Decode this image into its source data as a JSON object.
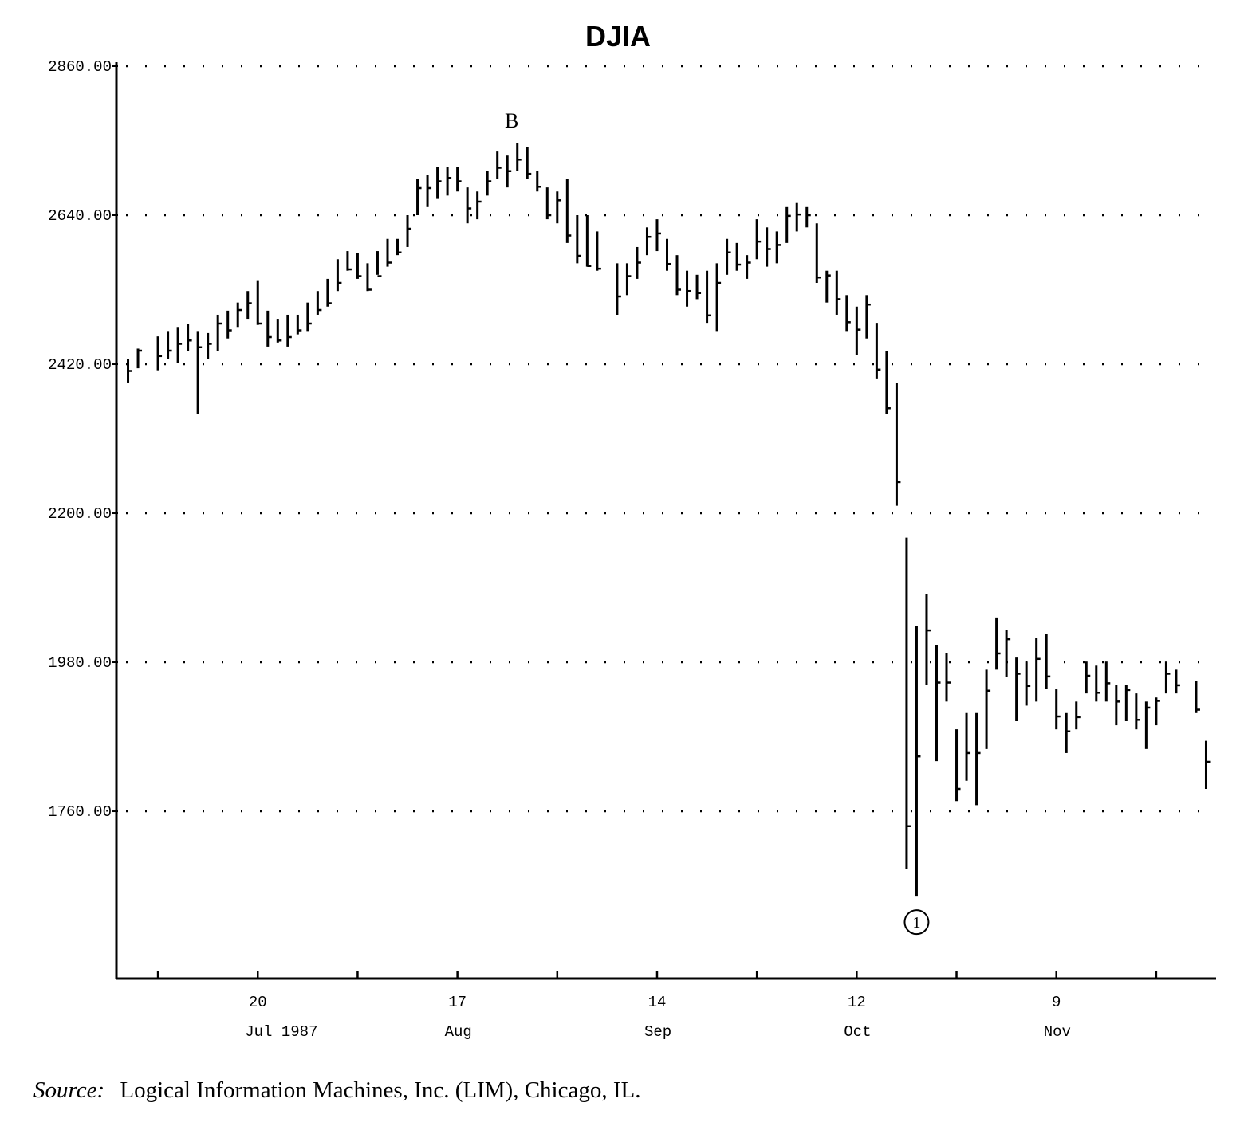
{
  "chart_data": {
    "type": "ohlc",
    "title": "DJIA",
    "source_label": "Source:",
    "source": "Logical Information Machines, Inc. (LIM), Chicago, IL.",
    "color": "#000000",
    "grid": true,
    "xlim": [
      "1987-06-30",
      "1987-12-01"
    ],
    "ylim": [
      1513,
      2860
    ],
    "yticks": [
      {
        "value": 2860,
        "label": "2860.00"
      },
      {
        "value": 2640,
        "label": "2640.00"
      },
      {
        "value": 2420,
        "label": "2420.00"
      },
      {
        "value": 2200,
        "label": "2200.00"
      },
      {
        "value": 1980,
        "label": "1980.00"
      },
      {
        "value": 1760,
        "label": "1760.00"
      }
    ],
    "xticks": [
      {
        "value": "1987-07-20",
        "label": "20",
        "sublabel": "Jul 1987"
      },
      {
        "value": "1987-08-17",
        "label": "17",
        "sublabel": "Aug"
      },
      {
        "value": "1987-09-14",
        "label": "14",
        "sublabel": "Sep"
      },
      {
        "value": "1987-10-12",
        "label": "12",
        "sublabel": "Oct"
      },
      {
        "value": "1987-11-09",
        "label": "9",
        "sublabel": "Nov"
      }
    ],
    "xminorticks": [
      "1987-07-06",
      "1987-08-03",
      "1987-08-31",
      "1987-09-28",
      "1987-10-26",
      "1987-11-23"
    ],
    "annotations": [
      {
        "label": "B",
        "x": "1987-08-25"
      },
      {
        "label": "1",
        "x": "1987-10-20"
      }
    ],
    "x": [
      "1987-07-01",
      "1987-07-02",
      "1987-07-06",
      "1987-07-07",
      "1987-07-08",
      "1987-07-09",
      "1987-07-10",
      "1987-07-13",
      "1987-07-14",
      "1987-07-15",
      "1987-07-16",
      "1987-07-17",
      "1987-07-20",
      "1987-07-21",
      "1987-07-22",
      "1987-07-23",
      "1987-07-24",
      "1987-07-27",
      "1987-07-28",
      "1987-07-29",
      "1987-07-30",
      "1987-07-31",
      "1987-08-03",
      "1987-08-04",
      "1987-08-05",
      "1987-08-06",
      "1987-08-07",
      "1987-08-10",
      "1987-08-11",
      "1987-08-12",
      "1987-08-13",
      "1987-08-14",
      "1987-08-17",
      "1987-08-18",
      "1987-08-19",
      "1987-08-20",
      "1987-08-21",
      "1987-08-24",
      "1987-08-25",
      "1987-08-26",
      "1987-08-27",
      "1987-08-28",
      "1987-08-31",
      "1987-09-01",
      "1987-09-02",
      "1987-09-03",
      "1987-09-04",
      "1987-09-08",
      "1987-09-09",
      "1987-09-10",
      "1987-09-11",
      "1987-09-14",
      "1987-09-15",
      "1987-09-16",
      "1987-09-17",
      "1987-09-18",
      "1987-09-21",
      "1987-09-22",
      "1987-09-23",
      "1987-09-24",
      "1987-09-25",
      "1987-09-28",
      "1987-09-29",
      "1987-09-30",
      "1987-10-01",
      "1987-10-02",
      "1987-10-05",
      "1987-10-06",
      "1987-10-07",
      "1987-10-08",
      "1987-10-09",
      "1987-10-12",
      "1987-10-13",
      "1987-10-14",
      "1987-10-15",
      "1987-10-16",
      "1987-10-19",
      "1987-10-20",
      "1987-10-21",
      "1987-10-22",
      "1987-10-23",
      "1987-10-26",
      "1987-10-27",
      "1987-10-28",
      "1987-10-29",
      "1987-10-30",
      "1987-11-02",
      "1987-11-03",
      "1987-11-04",
      "1987-11-05",
      "1987-11-06",
      "1987-11-09",
      "1987-11-10",
      "1987-11-11",
      "1987-11-12",
      "1987-11-13",
      "1987-11-16",
      "1987-11-17",
      "1987-11-18",
      "1987-11-19",
      "1987-11-20",
      "1987-11-23",
      "1987-11-24",
      "1987-11-25",
      "1987-11-27",
      "1987-11-30"
    ],
    "high": [
      2428,
      2443,
      2461,
      2469,
      2475,
      2479,
      2469,
      2466,
      2493,
      2499,
      2511,
      2528,
      2544,
      2499,
      2487,
      2493,
      2493,
      2511,
      2528,
      2546,
      2575,
      2587,
      2584,
      2569,
      2587,
      2605,
      2605,
      2640,
      2693,
      2699,
      2711,
      2711,
      2711,
      2681,
      2675,
      2705,
      2734,
      2728,
      2746,
      2740,
      2705,
      2681,
      2675,
      2693,
      2640,
      2640,
      2616,
      2569,
      2569,
      2593,
      2622,
      2634,
      2605,
      2581,
      2558,
      2552,
      2558,
      2569,
      2605,
      2599,
      2581,
      2634,
      2622,
      2616,
      2652,
      2658,
      2652,
      2628,
      2558,
      2558,
      2522,
      2505,
      2522,
      2481,
      2440,
      2393,
      2164,
      2034,
      2081,
      2005,
      1993,
      1881,
      1905,
      1905,
      1969,
      2046,
      2028,
      1987,
      1981,
      2016,
      2022,
      1940,
      1905,
      1922,
      1981,
      1975,
      1981,
      1946,
      1946,
      1934,
      1922,
      1928,
      1981,
      1969,
      1952,
      1864
    ],
    "low": [
      2393,
      2414,
      2411,
      2428,
      2422,
      2440,
      2346,
      2428,
      2440,
      2458,
      2475,
      2487,
      2478,
      2446,
      2452,
      2446,
      2464,
      2469,
      2493,
      2505,
      2528,
      2558,
      2546,
      2528,
      2552,
      2564,
      2581,
      2593,
      2640,
      2652,
      2664,
      2669,
      2675,
      2628,
      2634,
      2669,
      2693,
      2681,
      2705,
      2693,
      2675,
      2634,
      2628,
      2599,
      2569,
      2564,
      2558,
      2493,
      2522,
      2546,
      2581,
      2587,
      2558,
      2522,
      2505,
      2516,
      2481,
      2469,
      2552,
      2558,
      2546,
      2575,
      2564,
      2569,
      2599,
      2616,
      2622,
      2540,
      2511,
      2493,
      2469,
      2434,
      2458,
      2399,
      2346,
      2211,
      1675,
      1634,
      1946,
      1834,
      1922,
      1775,
      1805,
      1769,
      1852,
      1969,
      1958,
      1893,
      1916,
      1922,
      1940,
      1881,
      1846,
      1881,
      1934,
      1922,
      1922,
      1887,
      1893,
      1881,
      1852,
      1887,
      1934,
      1934,
      1905,
      1793
    ],
    "close": [
      2410,
      2440,
      2432,
      2440,
      2450,
      2455,
      2445,
      2450,
      2480,
      2470,
      2500,
      2510,
      2480,
      2460,
      2455,
      2460,
      2470,
      2480,
      2500,
      2510,
      2540,
      2560,
      2550,
      2530,
      2550,
      2570,
      2585,
      2620,
      2680,
      2680,
      2690,
      2695,
      2690,
      2650,
      2660,
      2690,
      2710,
      2705,
      2722,
      2701,
      2682,
      2640,
      2662,
      2610,
      2580,
      2565,
      2561,
      2520,
      2550,
      2570,
      2608,
      2613,
      2568,
      2530,
      2528,
      2525,
      2492,
      2540,
      2585,
      2567,
      2570,
      2601,
      2590,
      2596,
      2639,
      2641,
      2640,
      2548,
      2551,
      2516,
      2482,
      2471,
      2508,
      2412,
      2355,
      2246,
      1738,
      1841,
      2027,
      1950,
      1950,
      1793,
      1846,
      1846,
      1938,
      1993,
      2014,
      1963,
      1945,
      1985,
      1959,
      1900,
      1878,
      1899,
      1960,
      1935,
      1949,
      1922,
      1939,
      1895,
      1913,
      1923,
      1963,
      1946,
      1910,
      1833
    ]
  }
}
